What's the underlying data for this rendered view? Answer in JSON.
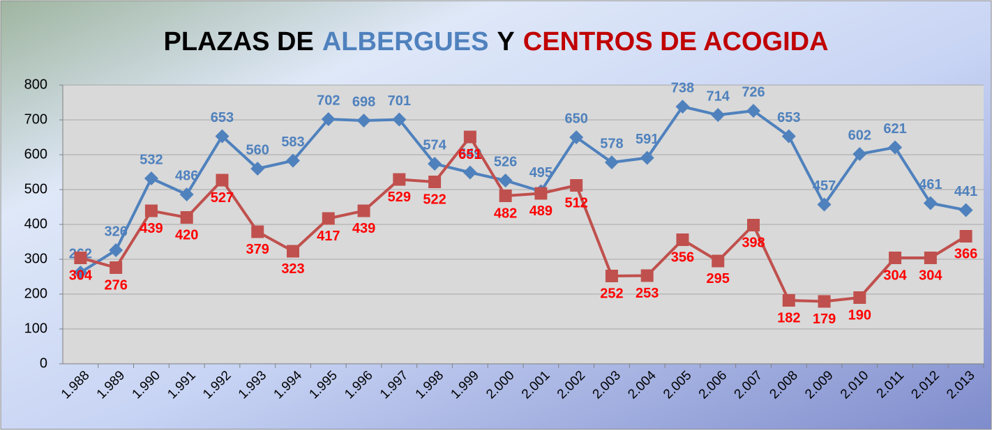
{
  "chart_data": {
    "type": "line",
    "title_parts": [
      {
        "text": "PLAZAS DE",
        "color": "#000000"
      },
      {
        "text": "ALBERGUES",
        "color": "#4f81bd"
      },
      {
        "text": "Y",
        "color": "#000000"
      },
      {
        "text": "CENTROS DE ACOGIDA",
        "color": "#c00000"
      }
    ],
    "categories": [
      "1.988",
      "1.989",
      "1.990",
      "1.991",
      "1.992",
      "1.993",
      "1.994",
      "1.995",
      "1.996",
      "1.997",
      "1.998",
      "1.999",
      "2.000",
      "2.001",
      "2.002",
      "2.003",
      "2.004",
      "2.005",
      "2.006",
      "2.007",
      "2.008",
      "2.009",
      "2.010",
      "2.011",
      "2.012",
      "2.013"
    ],
    "series": [
      {
        "color": "#4f81bd",
        "marker": "diamond",
        "label_color": "#4f81bd",
        "values": [
          262,
          326,
          532,
          486,
          653,
          560,
          583,
          702,
          698,
          701,
          574,
          549,
          526,
          495,
          650,
          578,
          591,
          738,
          714,
          726,
          653,
          457,
          602,
          621,
          461,
          441
        ]
      },
      {
        "color": "#c0504d",
        "marker": "square",
        "label_color": "#ff0000",
        "values": [
          304,
          276,
          439,
          420,
          527,
          379,
          323,
          417,
          439,
          529,
          522,
          651,
          482,
          489,
          512,
          252,
          253,
          356,
          295,
          398,
          182,
          179,
          190,
          304,
          304,
          366
        ]
      }
    ],
    "ylim": [
      0,
      800
    ],
    "yticks": [
      0,
      100,
      200,
      300,
      400,
      500,
      600,
      700,
      800
    ],
    "grid": true
  }
}
